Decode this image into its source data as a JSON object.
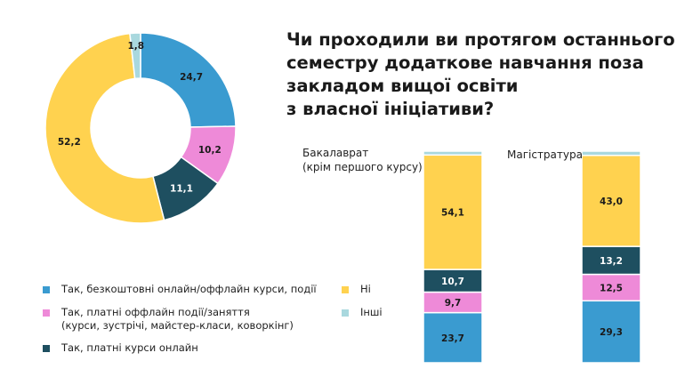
{
  "title_lines": [
    "Чи проходили ви протягом останнього",
    "семестру додаткове навчання поза",
    "закладом вищої освіти",
    "з власної ініціативи?"
  ],
  "colors": {
    "free_courses": "#3a9bd0",
    "paid_offline": "#ee8ad8",
    "paid_online": "#1e4f60",
    "no": "#ffd24f",
    "other": "#a9d8de"
  },
  "legend": [
    {
      "key": "free_courses",
      "label": "Так, безкоштовні онлайн/оффлайн курси, події"
    },
    {
      "key": "paid_offline",
      "label": "Так, платні оффлайн події/заняття\n(курси, зустрічі, майстер-класи, коворкінг)"
    },
    {
      "key": "paid_online",
      "label": "Так, платні курси онлайн"
    },
    {
      "key": "no",
      "label": "Ні"
    },
    {
      "key": "other",
      "label": "Інші"
    }
  ],
  "chart_data": [
    {
      "type": "pie",
      "subtype": "donut",
      "slices": [
        {
          "key": "free_courses",
          "label": "24,7",
          "value": 24.7
        },
        {
          "key": "paid_offline",
          "label": "10,2",
          "value": 10.2
        },
        {
          "key": "paid_online",
          "label": "11,1",
          "value": 11.1
        },
        {
          "key": "no",
          "label": "52,2",
          "value": 52.2
        },
        {
          "key": "other",
          "label": "1,8",
          "value": 1.8
        }
      ]
    },
    {
      "type": "bar",
      "subtype": "stacked-100",
      "groups": [
        {
          "name": "Бакалаврат\n(крім першого курсу)",
          "segments": [
            {
              "key": "free_courses",
              "label": "23,7",
              "value": 23.7
            },
            {
              "key": "paid_offline",
              "label": "9,7",
              "value": 9.7
            },
            {
              "key": "paid_online",
              "label": "10,7",
              "value": 10.7
            },
            {
              "key": "no",
              "label": "54,1",
              "value": 54.1
            },
            {
              "key": "other",
              "label": "",
              "value": 1.8
            }
          ]
        },
        {
          "name": "Магістратура",
          "segments": [
            {
              "key": "free_courses",
              "label": "29,3",
              "value": 29.3
            },
            {
              "key": "paid_offline",
              "label": "12,5",
              "value": 12.5
            },
            {
              "key": "paid_online",
              "label": "13,2",
              "value": 13.2
            },
            {
              "key": "no",
              "label": "43,0",
              "value": 43.0
            },
            {
              "key": "other",
              "label": "",
              "value": 2.0
            }
          ]
        }
      ]
    }
  ]
}
